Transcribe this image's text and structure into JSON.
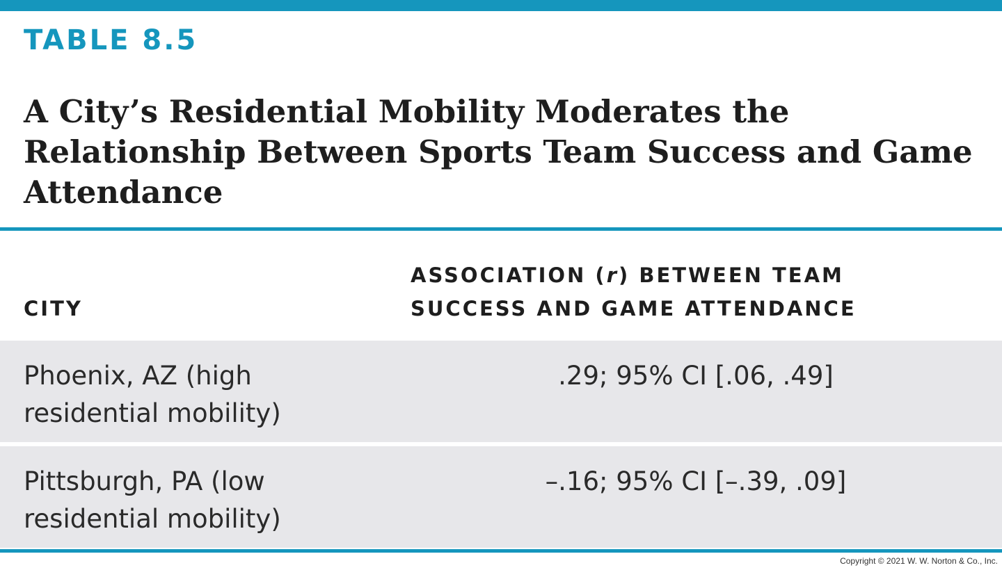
{
  "table": {
    "label": "TABLE 8.5",
    "title": "A City’s Residential Mobility Moderates the Relationship Between Sports Team Success and Game Attendance",
    "columns": {
      "city": "CITY",
      "association_prefix": "ASSOCIATION (",
      "association_symbol": "r",
      "association_suffix": ") BETWEEN TEAM SUCCESS AND GAME ATTENDANCE"
    },
    "rows": [
      {
        "city": "Phoenix, AZ (high residential mobility)",
        "association": ".29; 95% CI [.06, .49]"
      },
      {
        "city": "Pittsburgh, PA (low residential mobility)",
        "association": "–.16; 95% CI [–.39, .09]"
      }
    ]
  },
  "copyright": "Copyright © 2021 W. W. Norton & Co., Inc.",
  "colors": {
    "accent": "#1596bd",
    "row_background": "#e7e7ea",
    "text": "#1e1e1e"
  }
}
